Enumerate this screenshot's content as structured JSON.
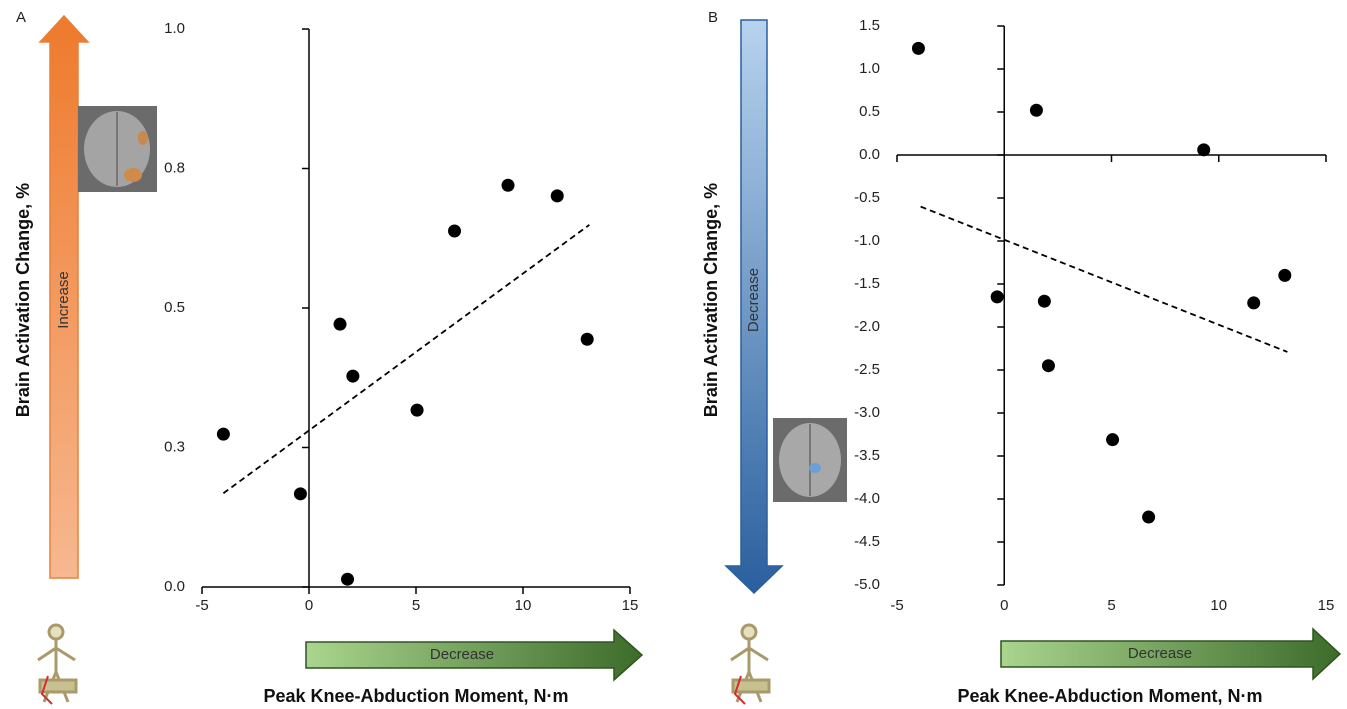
{
  "chart_data": [
    {
      "type": "scatter",
      "panel_label": "A",
      "y_label": "Brain Activation Change, %",
      "x_label": "Peak Knee-Abduction Moment, N·m",
      "y_arrow_label": "Increase",
      "x_arrow_label": "Decrease",
      "series": [
        {
          "color": "#000000",
          "x": [
            -4,
            -0.4,
            1.45,
            1.8,
            2.05,
            5.05,
            6.8,
            9.3,
            11.6,
            13.0
          ],
          "values": [
            0.274,
            0.167,
            0.471,
            0.014,
            0.378,
            0.317,
            0.638,
            0.72,
            0.701,
            0.444
          ]
        }
      ],
      "trendline": {
        "x": [
          -4,
          13.1
        ],
        "values": [
          0.168,
          0.649
        ]
      },
      "xlim": [
        -5,
        15
      ],
      "xticks": [
        -5,
        0,
        5,
        10,
        15
      ],
      "ylim": [
        0,
        1
      ],
      "yticks": [
        {
          "value": 0,
          "label": "0.0"
        },
        {
          "value": 0.25,
          "label": "0.3"
        },
        {
          "value": 0.5,
          "label": "0.5"
        },
        {
          "value": 0.75,
          "label": "0.8"
        },
        {
          "value": 1,
          "label": "1.0"
        }
      ]
    },
    {
      "type": "scatter",
      "panel_label": "B",
      "y_label": "Brain Activation Change, %",
      "x_label": "Peak Knee-Abduction Moment, N·m",
      "y_arrow_label": "Decrease",
      "x_arrow_label": "Decrease",
      "series": [
        {
          "color": "#000000",
          "x": [
            -4,
            1.5,
            9.3,
            -0.33,
            1.87,
            2.06,
            11.63,
            13.08,
            5.05,
            6.73
          ],
          "values": [
            1.24,
            0.52,
            0.06,
            -1.65,
            -1.7,
            -2.45,
            -1.72,
            -1.4,
            -3.31,
            -4.21
          ]
        }
      ],
      "trendline": {
        "x": [
          -3.9,
          13.2
        ],
        "values": [
          -0.6,
          -2.29
        ]
      },
      "xlim": [
        -5,
        15
      ],
      "xticks": [
        -5,
        0,
        5,
        10,
        15
      ],
      "ylim": [
        -5,
        1.5
      ],
      "yticks": [
        1.5,
        {
          "value": 1,
          "label": "1.0"
        },
        0.5,
        {
          "value": 0,
          "label": "0.0"
        },
        -0.5,
        {
          "value": -1,
          "label": "-1.0"
        },
        -1.5,
        {
          "value": -2,
          "label": "-2.0"
        },
        -2.5,
        {
          "value": -3,
          "label": "-3.0"
        },
        -3.5,
        {
          "value": -4,
          "label": "-4.0"
        },
        -4.5,
        {
          "value": -5,
          "label": "-5.0"
        }
      ]
    }
  ]
}
